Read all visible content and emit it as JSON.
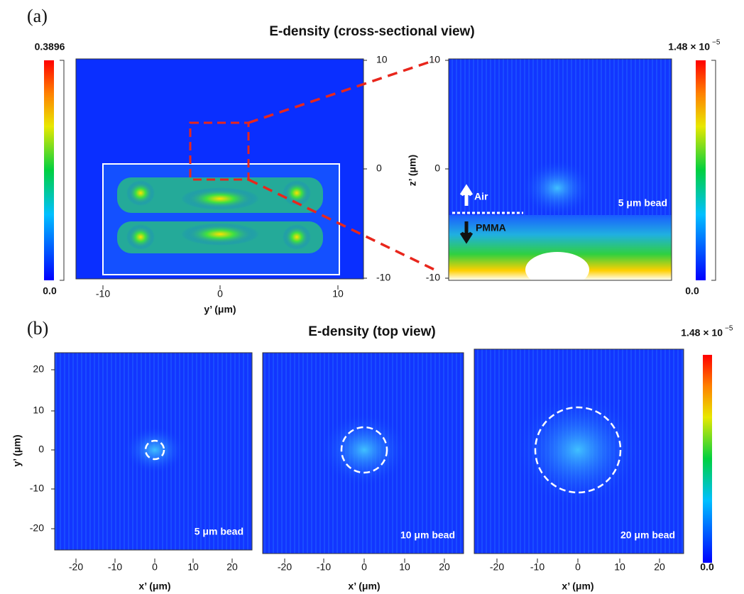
{
  "panel_a": {
    "label": "(a)",
    "title": "E-density (cross-sectional view)",
    "left_colorbar": {
      "max": "0.3896",
      "min": "0.0"
    },
    "left_plot": {
      "x_label": "y’ (μm)",
      "x_ticks": [
        "-10",
        "0",
        "10"
      ],
      "y_ticks": [
        "10",
        "0",
        "-10"
      ]
    },
    "right_plot": {
      "y_label": "z’ (μm)",
      "y_ticks": [
        "10",
        "0",
        "-10"
      ],
      "annotations": [
        "Air",
        "5 μm bead",
        "PMMA"
      ]
    },
    "right_colorbar": {
      "max": "1.48 × 10",
      "max_exponent": "−5",
      "min": "0.0"
    }
  },
  "panel_b": {
    "label": "(b)",
    "title": "E-density (top view)",
    "colorbar": {
      "max": "1.48 × 10",
      "max_exponent": "−5",
      "min": "0.0"
    },
    "y_label": "y’ (μm)",
    "y_ticks": [
      "20",
      "10",
      "0",
      "-10",
      "-20"
    ],
    "plots": [
      {
        "x_label": "x’ (μm)",
        "x_ticks": [
          "-20",
          "-10",
          "0",
          "10",
          "20"
        ],
        "annotation": "5 μm bead"
      },
      {
        "x_label": "x’ (μm)",
        "x_ticks": [
          "-20",
          "-10",
          "0",
          "10",
          "20"
        ],
        "annotation": "10 μm bead"
      },
      {
        "x_label": "x’ (μm)",
        "x_ticks": [
          "-20",
          "-10",
          "0",
          "10",
          "20"
        ],
        "annotation": "20 μm bead"
      }
    ]
  }
}
